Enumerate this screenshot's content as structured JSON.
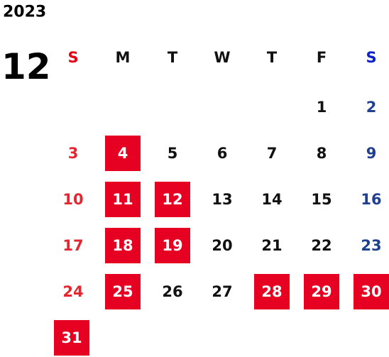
{
  "year": "2023",
  "month": "12",
  "weekdays": [
    "S",
    "M",
    "T",
    "W",
    "T",
    "F",
    "S"
  ],
  "weeks": [
    [
      null,
      null,
      null,
      null,
      null,
      {
        "day": 1
      },
      {
        "day": 2
      }
    ],
    [
      {
        "day": 3
      },
      {
        "day": 4,
        "marked": true
      },
      {
        "day": 5
      },
      {
        "day": 6
      },
      {
        "day": 7
      },
      {
        "day": 8
      },
      {
        "day": 9
      }
    ],
    [
      {
        "day": 10
      },
      {
        "day": 11,
        "marked": true
      },
      {
        "day": 12,
        "marked": true
      },
      {
        "day": 13
      },
      {
        "day": 14
      },
      {
        "day": 15
      },
      {
        "day": 16
      }
    ],
    [
      {
        "day": 17
      },
      {
        "day": 18,
        "marked": true
      },
      {
        "day": 19,
        "marked": true
      },
      {
        "day": 20
      },
      {
        "day": 21
      },
      {
        "day": 22
      },
      {
        "day": 23
      }
    ],
    [
      {
        "day": 24
      },
      {
        "day": 25,
        "marked": true
      },
      {
        "day": 26
      },
      {
        "day": 27
      },
      {
        "day": 28,
        "marked": true
      },
      {
        "day": 29,
        "marked": true
      },
      {
        "day": 30,
        "marked": true
      }
    ],
    [
      {
        "day": 31,
        "marked": true
      },
      null,
      null,
      null,
      null,
      null,
      null
    ]
  ]
}
